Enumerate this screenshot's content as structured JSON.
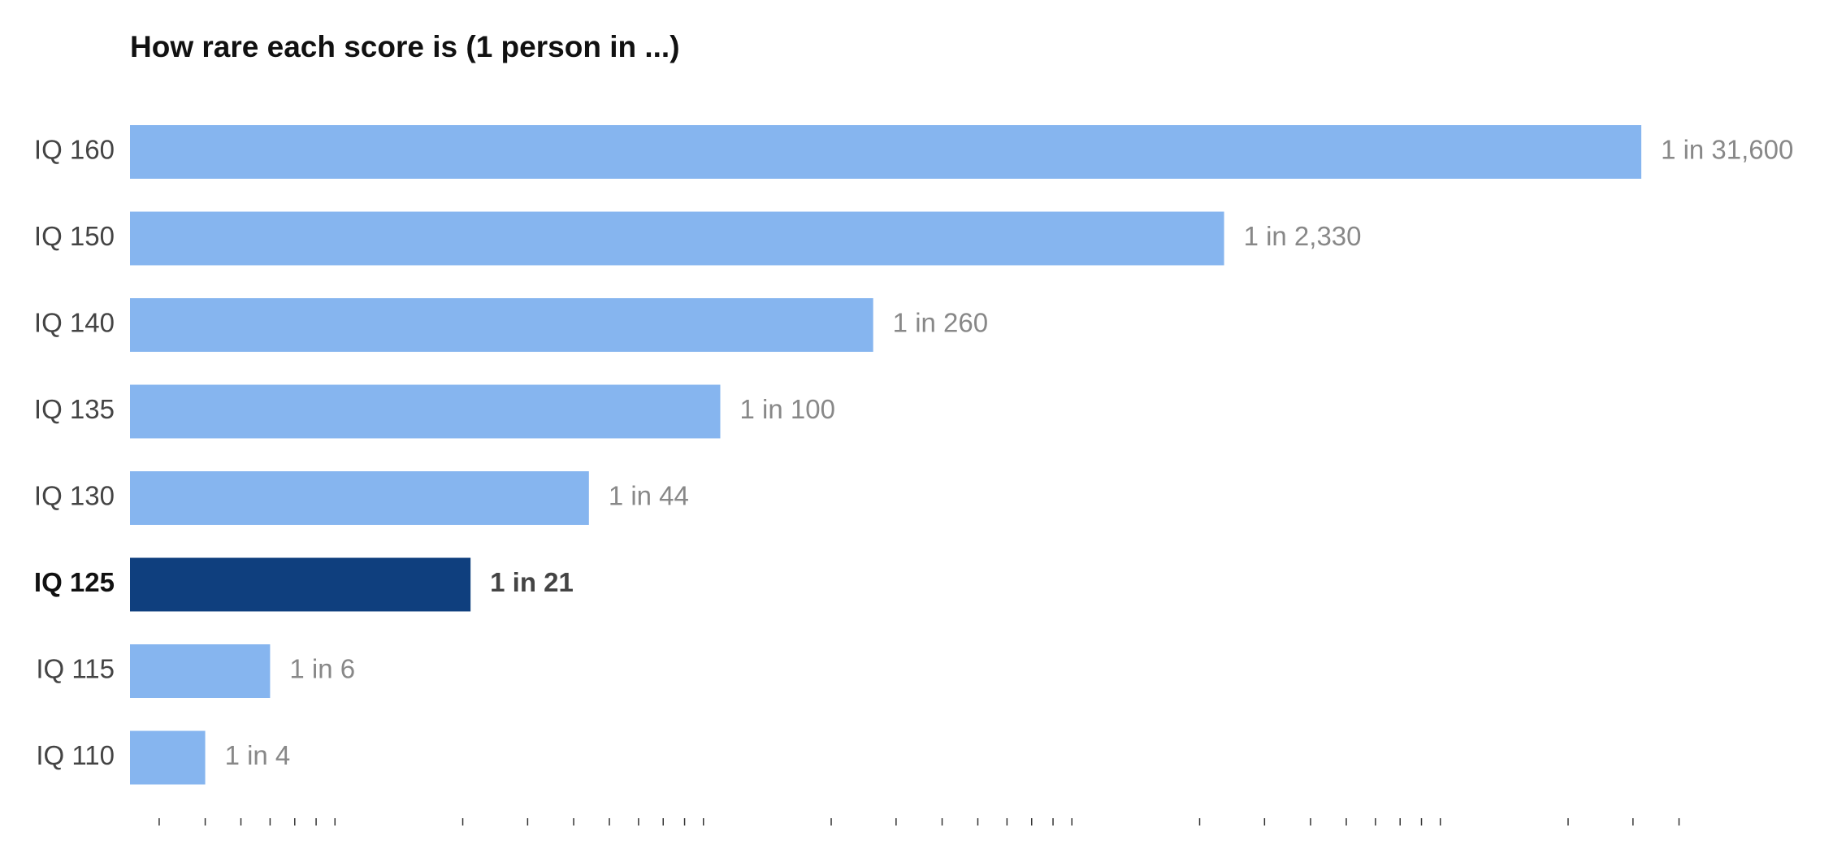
{
  "chart_data": {
    "type": "bar",
    "orientation": "horizontal",
    "title": "How rare each score is (1 person in ...)",
    "categories": [
      "IQ 160",
      "IQ 150",
      "IQ 140",
      "IQ 135",
      "IQ 130",
      "IQ 125",
      "IQ 115",
      "IQ 110"
    ],
    "values": [
      31600,
      2330,
      260,
      100,
      44,
      21,
      6,
      4
    ],
    "value_labels": [
      "1 in 31,600",
      "1 in 2,330",
      "1 in 260",
      "1 in 100",
      "1 in 44",
      "1 in 21",
      "1 in 6",
      "1 in 4"
    ],
    "colors": [
      "#86b5ef",
      "#86b5ef",
      "#86b5ef",
      "#86b5ef",
      "#86b5ef",
      "#0f3f7e",
      "#86b5ef",
      "#86b5ef"
    ],
    "highlight_color": "#0f3f7e",
    "xscale": "log",
    "xlim": [
      2.5,
      80000
    ],
    "xticks": [
      3,
      4,
      5,
      6,
      7,
      8,
      9,
      20,
      30,
      40,
      50,
      60,
      70,
      80,
      90,
      200,
      300,
      400,
      500,
      600,
      700,
      800,
      900,
      2000,
      3000,
      4000,
      5000,
      6000,
      7000,
      8000,
      9000,
      20000,
      30000,
      40000
    ],
    "grid": false
  }
}
